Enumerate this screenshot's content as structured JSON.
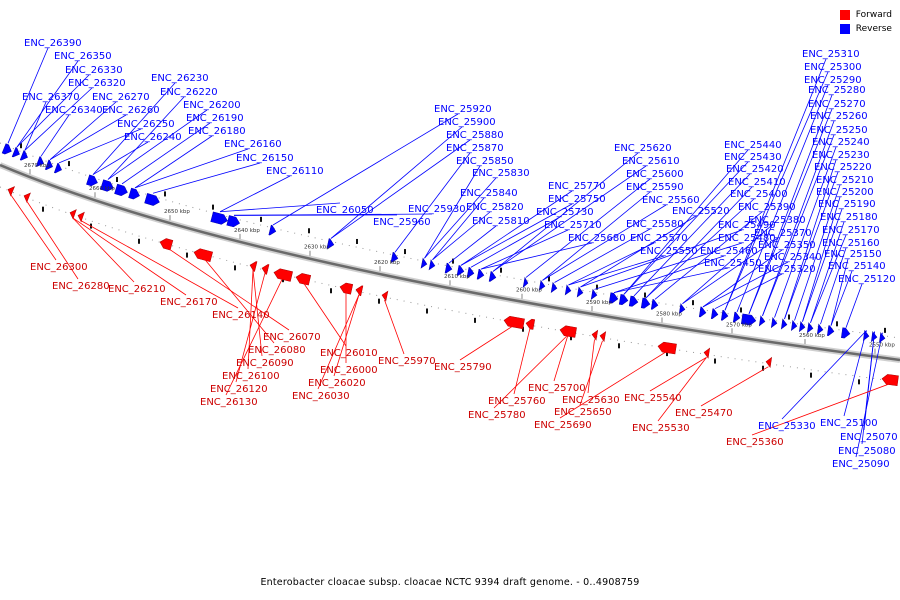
{
  "legend": {
    "forward_label": "Forward",
    "reverse_label": "Reverse",
    "forward_color": "#ff0000",
    "reverse_color": "#0000ff"
  },
  "caption": "Enterobacter cloacae subsp. cloacae NCTC 9394 draft genome. - 0..4908759",
  "ticks": [
    "2670 kbp",
    "2660 kbp",
    "2650 kbp",
    "2640 kbp",
    "2630 kbp",
    "2620 kbp",
    "2610 kbp",
    "2600 kbp",
    "2590 kbp",
    "2580 kbp",
    "2570 kbp",
    "2560 kbp",
    "2550 kbp"
  ],
  "reverse_labels": [
    "ENC_26390",
    "ENC_26350",
    "ENC_26330",
    "ENC_26320",
    "ENC_26370",
    "ENC_26340",
    "ENC_26270",
    "ENC_26260",
    "ENC_26250",
    "ENC_26240",
    "ENC_26230",
    "ENC_26220",
    "ENC_26200",
    "ENC_26190",
    "ENC_26180",
    "ENC_26160",
    "ENC_26150",
    "ENC_26110",
    "ENC_26050",
    "ENC_25960",
    "ENC_25930",
    "ENC_25920",
    "ENC_25900",
    "ENC_25880",
    "ENC_25870",
    "ENC_25850",
    "ENC_25830",
    "ENC_25840",
    "ENC_25820",
    "ENC_25810",
    "ENC_25770",
    "ENC_25750",
    "ENC_25730",
    "ENC_25710",
    "ENC_25680",
    "ENC_25620",
    "ENC_25610",
    "ENC_25600",
    "ENC_25590",
    "ENC_25560",
    "ENC_25580",
    "ENC_25570",
    "ENC_25550",
    "ENC_25520",
    "ENC_25490",
    "ENC_25480",
    "ENC_25460",
    "ENC_25450",
    "ENC_25440",
    "ENC_25430",
    "ENC_25420",
    "ENC_25410",
    "ENC_25400",
    "ENC_25390",
    "ENC_25380",
    "ENC_25370",
    "ENC_25350",
    "ENC_25340",
    "ENC_25320",
    "ENC_25310",
    "ENC_25300",
    "ENC_25290",
    "ENC_25280",
    "ENC_25270",
    "ENC_25260",
    "ENC_25250",
    "ENC_25240",
    "ENC_25230",
    "ENC_25220",
    "ENC_25210",
    "ENC_25200",
    "ENC_25190",
    "ENC_25180",
    "ENC_25170",
    "ENC_25160",
    "ENC_25150",
    "ENC_25140",
    "ENC_25120",
    "ENC_25330",
    "ENC_25100",
    "ENC_25070",
    "ENC_25080",
    "ENC_25090"
  ],
  "forward_labels": [
    "ENC_26300",
    "ENC_26280",
    "ENC_26210",
    "ENC_26170",
    "ENC_26140",
    "ENC_26070",
    "ENC_26080",
    "ENC_26090",
    "ENC_26100",
    "ENC_26120",
    "ENC_26130",
    "ENC_26010",
    "ENC_26000",
    "ENC_26020",
    "ENC_26030",
    "ENC_25970",
    "ENC_25790",
    "ENC_25760",
    "ENC_25780",
    "ENC_25700",
    "ENC_25630",
    "ENC_25650",
    "ENC_25690",
    "ENC_25540",
    "ENC_25530",
    "ENC_25470",
    "ENC_25360"
  ]
}
